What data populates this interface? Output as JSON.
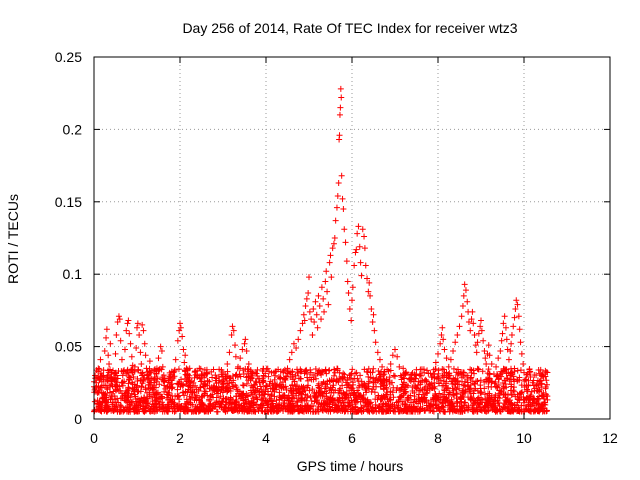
{
  "chart_data": {
    "type": "scatter",
    "title": "Day 256 of 2014, Rate Of TEC Index for receiver wtz3",
    "xlabel": "GPS time / hours",
    "ylabel": "ROTI / TECUs",
    "xlim": [
      0,
      12
    ],
    "ylim": [
      0,
      0.25
    ],
    "x_ticks": [
      0,
      2,
      4,
      6,
      8,
      10,
      12
    ],
    "x_tick_labels": [
      "0",
      "2",
      "4",
      "6",
      "8",
      "10",
      "12"
    ],
    "y_ticks": [
      0,
      0.05,
      0.1,
      0.15,
      0.2,
      0.25
    ],
    "y_tick_labels": [
      "0",
      "0.05",
      "0.1",
      "0.15",
      "0.2",
      "0.25"
    ],
    "grid": true,
    "marker": "+",
    "series": [
      {
        "name": "ROTI",
        "color": "#ff0000",
        "points": [
          [
            0.02,
            0.012
          ],
          [
            0.05,
            0.025
          ],
          [
            0.08,
            0.018
          ],
          [
            0.1,
            0.035
          ],
          [
            0.12,
            0.028
          ],
          [
            0.15,
            0.041
          ],
          [
            0.18,
            0.022
          ],
          [
            0.2,
            0.015
          ],
          [
            0.22,
            0.03
          ],
          [
            0.25,
            0.047
          ],
          [
            0.28,
            0.056
          ],
          [
            0.3,
            0.062
          ],
          [
            0.33,
            0.044
          ],
          [
            0.35,
            0.038
          ],
          [
            0.38,
            0.052
          ],
          [
            0.4,
            0.031
          ],
          [
            0.42,
            0.024
          ],
          [
            0.45,
            0.019
          ],
          [
            0.48,
            0.027
          ],
          [
            0.5,
            0.045
          ],
          [
            0.52,
            0.058
          ],
          [
            0.55,
            0.067
          ],
          [
            0.58,
            0.071
          ],
          [
            0.6,
            0.069
          ],
          [
            0.62,
            0.054
          ],
          [
            0.65,
            0.041
          ],
          [
            0.68,
            0.033
          ],
          [
            0.7,
            0.026
          ],
          [
            0.72,
            0.048
          ],
          [
            0.75,
            0.061
          ],
          [
            0.78,
            0.066
          ],
          [
            0.8,
            0.068
          ],
          [
            0.82,
            0.059
          ],
          [
            0.85,
            0.052
          ],
          [
            0.88,
            0.043
          ],
          [
            0.9,
            0.037
          ],
          [
            0.92,
            0.029
          ],
          [
            0.95,
            0.036
          ],
          [
            0.98,
            0.049
          ],
          [
            1.0,
            0.063
          ],
          [
            1.02,
            0.066
          ],
          [
            1.05,
            0.058
          ],
          [
            1.08,
            0.046
          ],
          [
            1.1,
            0.038
          ],
          [
            1.12,
            0.065
          ],
          [
            1.15,
            0.061
          ],
          [
            1.18,
            0.052
          ],
          [
            1.2,
            0.044
          ],
          [
            1.22,
            0.035
          ],
          [
            1.25,
            0.027
          ],
          [
            1.28,
            0.031
          ],
          [
            1.3,
            0.04
          ],
          [
            1.33,
            0.028
          ],
          [
            1.35,
            0.021
          ],
          [
            1.38,
            0.018
          ],
          [
            1.4,
            0.025
          ],
          [
            1.45,
            0.033
          ],
          [
            1.5,
            0.042
          ],
          [
            1.55,
            0.05
          ],
          [
            1.58,
            0.047
          ],
          [
            1.6,
            0.036
          ],
          [
            1.65,
            0.028
          ],
          [
            1.7,
            0.022
          ],
          [
            1.75,
            0.018
          ],
          [
            1.8,
            0.024
          ],
          [
            1.85,
            0.032
          ],
          [
            1.9,
            0.041
          ],
          [
            1.95,
            0.054
          ],
          [
            1.98,
            0.061
          ],
          [
            2.0,
            0.066
          ],
          [
            2.02,
            0.063
          ],
          [
            2.05,
            0.057
          ],
          [
            2.08,
            0.048
          ],
          [
            2.1,
            0.039
          ],
          [
            2.12,
            0.044
          ],
          [
            2.15,
            0.035
          ],
          [
            2.2,
            0.027
          ],
          [
            2.25,
            0.022
          ],
          [
            2.3,
            0.018
          ],
          [
            2.35,
            0.023
          ],
          [
            2.4,
            0.029
          ],
          [
            2.45,
            0.035
          ],
          [
            2.5,
            0.031
          ],
          [
            2.55,
            0.024
          ],
          [
            2.6,
            0.019
          ],
          [
            2.65,
            0.026
          ],
          [
            2.7,
            0.021
          ],
          [
            2.75,
            0.017
          ],
          [
            2.8,
            0.022
          ],
          [
            2.85,
            0.028
          ],
          [
            2.9,
            0.025
          ],
          [
            2.95,
            0.02
          ],
          [
            3.0,
            0.024
          ],
          [
            3.05,
            0.031
          ],
          [
            3.1,
            0.038
          ],
          [
            3.15,
            0.046
          ],
          [
            3.2,
            0.058
          ],
          [
            3.22,
            0.064
          ],
          [
            3.25,
            0.061
          ],
          [
            3.28,
            0.051
          ],
          [
            3.3,
            0.043
          ],
          [
            3.35,
            0.036
          ],
          [
            3.4,
            0.042
          ],
          [
            3.45,
            0.048
          ],
          [
            3.5,
            0.052
          ],
          [
            3.52,
            0.055
          ],
          [
            3.55,
            0.047
          ],
          [
            3.6,
            0.038
          ],
          [
            3.65,
            0.029
          ],
          [
            3.7,
            0.022
          ],
          [
            3.75,
            0.018
          ],
          [
            3.8,
            0.021
          ],
          [
            3.85,
            0.025
          ],
          [
            3.9,
            0.02
          ],
          [
            3.95,
            0.017
          ],
          [
            4.0,
            0.023
          ],
          [
            4.05,
            0.019
          ],
          [
            4.1,
            0.026
          ],
          [
            4.15,
            0.021
          ],
          [
            4.2,
            0.027
          ],
          [
            4.25,
            0.022
          ],
          [
            4.3,
            0.029
          ],
          [
            4.35,
            0.024
          ],
          [
            4.4,
            0.032
          ],
          [
            4.45,
            0.028
          ],
          [
            4.5,
            0.035
          ],
          [
            4.55,
            0.041
          ],
          [
            4.6,
            0.046
          ],
          [
            4.65,
            0.052
          ],
          [
            4.7,
            0.049
          ],
          [
            4.75,
            0.055
          ],
          [
            4.8,
            0.061
          ],
          [
            4.85,
            0.066
          ],
          [
            4.88,
            0.072
          ],
          [
            4.9,
            0.068
          ],
          [
            4.92,
            0.078
          ],
          [
            4.95,
            0.083
          ],
          [
            4.98,
            0.087
          ],
          [
            5.0,
            0.098
          ],
          [
            5.02,
            0.074
          ],
          [
            5.05,
            0.069
          ],
          [
            5.08,
            0.058
          ],
          [
            5.1,
            0.076
          ],
          [
            5.12,
            0.067
          ],
          [
            5.15,
            0.081
          ],
          [
            5.18,
            0.072
          ],
          [
            5.2,
            0.063
          ],
          [
            5.22,
            0.085
          ],
          [
            5.25,
            0.078
          ],
          [
            5.28,
            0.069
          ],
          [
            5.3,
            0.091
          ],
          [
            5.33,
            0.083
          ],
          [
            5.35,
            0.074
          ],
          [
            5.38,
            0.095
          ],
          [
            5.4,
            0.102
          ],
          [
            5.42,
            0.088
          ],
          [
            5.45,
            0.079
          ],
          [
            5.48,
            0.108
          ],
          [
            5.5,
            0.113
          ],
          [
            5.52,
            0.098
          ],
          [
            5.55,
            0.118
          ],
          [
            5.58,
            0.121
          ],
          [
            5.6,
            0.125
          ],
          [
            5.62,
            0.137
          ],
          [
            5.65,
            0.146
          ],
          [
            5.67,
            0.154
          ],
          [
            5.69,
            0.163
          ],
          [
            5.7,
            0.193
          ],
          [
            5.71,
            0.196
          ],
          [
            5.72,
            0.21
          ],
          [
            5.73,
            0.215
          ],
          [
            5.74,
            0.228
          ],
          [
            5.75,
            0.222
          ],
          [
            5.76,
            0.168
          ],
          [
            5.78,
            0.152
          ],
          [
            5.8,
            0.145
          ],
          [
            5.82,
            0.131
          ],
          [
            5.85,
            0.122
          ],
          [
            5.88,
            0.109
          ],
          [
            5.9,
            0.095
          ],
          [
            5.92,
            0.087
          ],
          [
            5.95,
            0.076
          ],
          [
            5.98,
            0.068
          ],
          [
            6.0,
            0.082
          ],
          [
            6.02,
            0.091
          ],
          [
            6.05,
            0.106
          ],
          [
            6.08,
            0.115
          ],
          [
            6.1,
            0.117
          ],
          [
            6.12,
            0.128
          ],
          [
            6.15,
            0.133
          ],
          [
            6.18,
            0.119
          ],
          [
            6.2,
            0.108
          ],
          [
            6.22,
            0.099
          ],
          [
            6.25,
            0.131
          ],
          [
            6.28,
            0.126
          ],
          [
            6.3,
            0.118
          ],
          [
            6.32,
            0.106
          ],
          [
            6.35,
            0.097
          ],
          [
            6.38,
            0.088
          ],
          [
            6.4,
            0.094
          ],
          [
            6.42,
            0.085
          ],
          [
            6.45,
            0.076
          ],
          [
            6.48,
            0.067
          ],
          [
            6.5,
            0.072
          ],
          [
            6.52,
            0.061
          ],
          [
            6.55,
            0.053
          ],
          [
            6.6,
            0.046
          ],
          [
            6.65,
            0.041
          ],
          [
            6.7,
            0.036
          ],
          [
            6.75,
            0.031
          ],
          [
            6.8,
            0.027
          ],
          [
            6.85,
            0.033
          ],
          [
            6.9,
            0.038
          ],
          [
            6.95,
            0.044
          ],
          [
            7.0,
            0.048
          ],
          [
            7.05,
            0.043
          ],
          [
            7.1,
            0.036
          ],
          [
            7.15,
            0.029
          ],
          [
            7.2,
            0.024
          ],
          [
            7.25,
            0.019
          ],
          [
            7.3,
            0.023
          ],
          [
            7.35,
            0.028
          ],
          [
            7.4,
            0.022
          ],
          [
            7.45,
            0.018
          ],
          [
            7.5,
            0.021
          ],
          [
            7.55,
            0.026
          ],
          [
            7.6,
            0.02
          ],
          [
            7.65,
            0.017
          ],
          [
            7.7,
            0.022
          ],
          [
            7.75,
            0.018
          ],
          [
            7.8,
            0.024
          ],
          [
            7.85,
            0.029
          ],
          [
            7.9,
            0.034
          ],
          [
            7.95,
            0.039
          ],
          [
            8.0,
            0.045
          ],
          [
            8.05,
            0.052
          ],
          [
            8.08,
            0.058
          ],
          [
            8.1,
            0.063
          ],
          [
            8.12,
            0.055
          ],
          [
            8.15,
            0.048
          ],
          [
            8.2,
            0.042
          ],
          [
            8.25,
            0.036
          ],
          [
            8.3,
            0.041
          ],
          [
            8.35,
            0.047
          ],
          [
            8.4,
            0.053
          ],
          [
            8.45,
            0.058
          ],
          [
            8.5,
            0.064
          ],
          [
            8.55,
            0.071
          ],
          [
            8.58,
            0.078
          ],
          [
            8.6,
            0.085
          ],
          [
            8.62,
            0.093
          ],
          [
            8.65,
            0.089
          ],
          [
            8.68,
            0.081
          ],
          [
            8.7,
            0.074
          ],
          [
            8.72,
            0.067
          ],
          [
            8.75,
            0.061
          ],
          [
            8.78,
            0.069
          ],
          [
            8.8,
            0.074
          ],
          [
            8.82,
            0.066
          ],
          [
            8.85,
            0.058
          ],
          [
            8.88,
            0.051
          ],
          [
            8.9,
            0.046
          ],
          [
            8.92,
            0.053
          ],
          [
            8.95,
            0.059
          ],
          [
            8.98,
            0.064
          ],
          [
            9.0,
            0.068
          ],
          [
            9.02,
            0.061
          ],
          [
            9.05,
            0.054
          ],
          [
            9.08,
            0.047
          ],
          [
            9.1,
            0.042
          ],
          [
            9.12,
            0.038
          ],
          [
            9.15,
            0.045
          ],
          [
            9.18,
            0.051
          ],
          [
            9.2,
            0.044
          ],
          [
            9.25,
            0.038
          ],
          [
            9.3,
            0.031
          ],
          [
            9.35,
            0.036
          ],
          [
            9.4,
            0.042
          ],
          [
            9.45,
            0.047
          ],
          [
            9.48,
            0.054
          ],
          [
            9.5,
            0.059
          ],
          [
            9.52,
            0.066
          ],
          [
            9.55,
            0.071
          ],
          [
            9.58,
            0.063
          ],
          [
            9.6,
            0.055
          ],
          [
            9.62,
            0.048
          ],
          [
            9.65,
            0.041
          ],
          [
            9.68,
            0.047
          ],
          [
            9.7,
            0.052
          ],
          [
            9.72,
            0.058
          ],
          [
            9.75,
            0.064
          ],
          [
            9.78,
            0.07
          ],
          [
            9.8,
            0.076
          ],
          [
            9.82,
            0.082
          ],
          [
            9.85,
            0.079
          ],
          [
            9.88,
            0.071
          ],
          [
            9.9,
            0.062
          ],
          [
            9.92,
            0.053
          ],
          [
            9.95,
            0.045
          ],
          [
            9.98,
            0.038
          ],
          [
            10.0,
            0.032
          ],
          [
            10.05,
            0.027
          ],
          [
            10.1,
            0.023
          ],
          [
            10.15,
            0.029
          ],
          [
            10.2,
            0.025
          ],
          [
            10.25,
            0.021
          ],
          [
            10.3,
            0.024
          ],
          [
            10.35,
            0.019
          ],
          [
            10.4,
            0.022
          ],
          [
            10.45,
            0.018
          ],
          [
            10.5,
            0.021
          ],
          [
            10.52,
            0.016
          ]
        ]
      }
    ],
    "dense_band": {
      "x_range": [
        0.0,
        10.55
      ],
      "y_floor": 0.005,
      "y_ceiling": 0.035,
      "point_count": 2600
    }
  }
}
